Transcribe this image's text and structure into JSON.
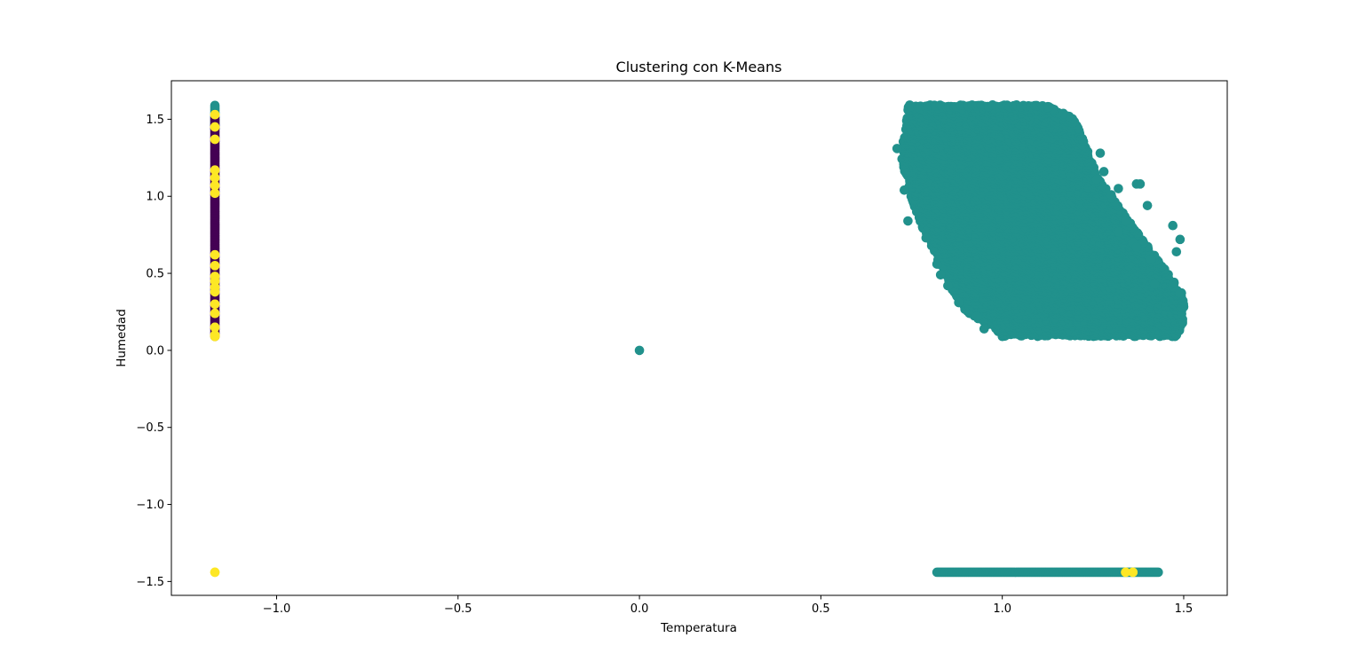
{
  "chart_data": {
    "type": "scatter",
    "title": "Clustering con K-Means",
    "xlabel": "Temperatura",
    "ylabel": "Humedad",
    "xlim": [
      -1.29,
      1.62
    ],
    "ylim": [
      -1.59,
      1.75
    ],
    "xticks": [
      {
        "value": -1.0,
        "label": "−1.0"
      },
      {
        "value": -0.5,
        "label": "−0.5"
      },
      {
        "value": 0.0,
        "label": "0.0"
      },
      {
        "value": 0.5,
        "label": "0.5"
      },
      {
        "value": 1.0,
        "label": "1.0"
      },
      {
        "value": 1.5,
        "label": "1.5"
      }
    ],
    "yticks": [
      {
        "value": 1.5,
        "label": "1.5"
      },
      {
        "value": 1.0,
        "label": "1.0"
      },
      {
        "value": 0.5,
        "label": "0.5"
      },
      {
        "value": 0.0,
        "label": "0.0"
      },
      {
        "value": -0.5,
        "label": "−0.5"
      },
      {
        "value": -1.0,
        "label": "−1.0"
      },
      {
        "value": -1.5,
        "label": "−1.5"
      }
    ],
    "grid": false,
    "legend": "none",
    "colors": {
      "cluster_0": "#440154",
      "cluster_1": "#21918c",
      "cluster_2": "#fde725"
    },
    "point_groups": [
      {
        "cluster": 1,
        "x": -1.17,
        "y_from": 1.44,
        "y_to": 1.59,
        "note": "vertical strip top"
      },
      {
        "cluster": 0,
        "x": -1.17,
        "y_from": 0.09,
        "y_to": 1.51,
        "note": "vertical strip"
      },
      {
        "cluster": 2,
        "x": -1.17,
        "y_values": [
          1.53,
          1.45,
          1.37,
          1.17,
          1.12,
          1.07,
          1.02,
          0.62,
          0.55,
          0.48,
          0.45,
          0.41,
          0.38,
          0.3,
          0.24,
          0.15,
          0.1,
          0.09
        ]
      },
      {
        "cluster": 2,
        "x": -1.17,
        "y": -1.44
      },
      {
        "cluster": 1,
        "x": 0.0,
        "y": 0.0
      },
      {
        "cluster": 1,
        "polygon": [
          [
            0.74,
            1.6
          ],
          [
            1.12,
            1.6
          ],
          [
            1.2,
            1.5
          ],
          [
            1.27,
            1.1
          ],
          [
            1.5,
            0.36
          ],
          [
            1.5,
            0.18
          ],
          [
            1.48,
            0.09
          ],
          [
            1.0,
            0.09
          ],
          [
            0.98,
            0.14
          ],
          [
            0.9,
            0.25
          ],
          [
            0.86,
            0.4
          ],
          [
            0.8,
            0.7
          ],
          [
            0.76,
            0.9
          ],
          [
            0.72,
            1.25
          ]
        ]
      },
      {
        "cluster": 1,
        "x_from": 0.82,
        "x_to": 1.43,
        "y": -1.44
      },
      {
        "cluster": 2,
        "x_values": [
          1.34,
          1.36
        ],
        "y": -1.44
      }
    ],
    "outliers": [
      {
        "cluster": 1,
        "x": 0.71,
        "y": 1.31
      },
      {
        "cluster": 1,
        "x": 1.27,
        "y": 1.28
      },
      {
        "cluster": 1,
        "x": 1.26,
        "y": 1.11
      },
      {
        "cluster": 1,
        "x": 1.28,
        "y": 1.16
      },
      {
        "cluster": 1,
        "x": 1.3,
        "y": 1.01
      },
      {
        "cluster": 1,
        "x": 1.32,
        "y": 1.05
      },
      {
        "cluster": 1,
        "x": 1.37,
        "y": 1.08
      },
      {
        "cluster": 1,
        "x": 1.38,
        "y": 1.08
      },
      {
        "cluster": 1,
        "x": 1.4,
        "y": 0.94
      },
      {
        "cluster": 1,
        "x": 1.34,
        "y": 0.84
      },
      {
        "cluster": 1,
        "x": 1.47,
        "y": 0.81
      },
      {
        "cluster": 1,
        "x": 1.49,
        "y": 0.72
      },
      {
        "cluster": 1,
        "x": 1.48,
        "y": 0.64
      },
      {
        "cluster": 1,
        "x": 1.41,
        "y": 0.59
      },
      {
        "cluster": 1,
        "x": 1.36,
        "y": 0.7
      },
      {
        "cluster": 1,
        "x": 1.37,
        "y": 0.67
      },
      {
        "cluster": 1,
        "x": 1.32,
        "y": 0.77
      },
      {
        "cluster": 1,
        "x": 1.49,
        "y": 0.37
      },
      {
        "cluster": 1,
        "x": 1.42,
        "y": 0.43
      },
      {
        "cluster": 1,
        "x": 0.74,
        "y": 0.84
      },
      {
        "cluster": 1,
        "x": 0.79,
        "y": 0.73
      },
      {
        "cluster": 1,
        "x": 0.82,
        "y": 0.56
      },
      {
        "cluster": 1,
        "x": 0.83,
        "y": 0.49
      },
      {
        "cluster": 1,
        "x": 0.85,
        "y": 0.42
      },
      {
        "cluster": 1,
        "x": 0.88,
        "y": 0.31
      },
      {
        "cluster": 1,
        "x": 0.93,
        "y": 0.22
      },
      {
        "cluster": 1,
        "x": 0.95,
        "y": 0.14
      },
      {
        "cluster": 1,
        "x": 0.73,
        "y": 1.04
      }
    ]
  }
}
